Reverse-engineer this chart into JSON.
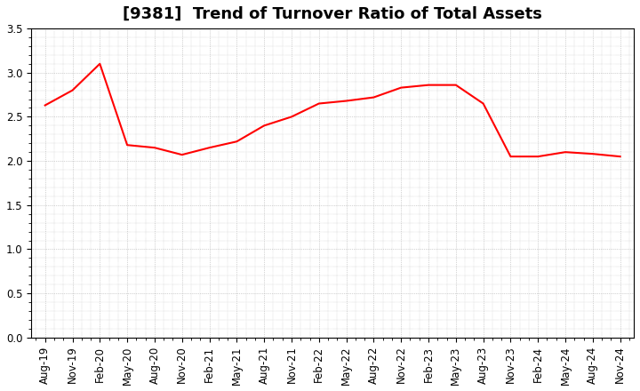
{
  "title": "[9381]  Trend of Turnover Ratio of Total Assets",
  "x_labels": [
    "Aug-19",
    "Nov-19",
    "Feb-20",
    "May-20",
    "Aug-20",
    "Nov-20",
    "Feb-21",
    "May-21",
    "Aug-21",
    "Nov-21",
    "Feb-22",
    "May-22",
    "Aug-22",
    "Nov-22",
    "Feb-23",
    "May-23",
    "Aug-23",
    "Nov-23",
    "Feb-24",
    "May-24",
    "Aug-24",
    "Nov-24"
  ],
  "y_values": [
    2.63,
    2.8,
    3.1,
    2.18,
    2.15,
    2.07,
    2.15,
    2.22,
    2.4,
    2.5,
    2.65,
    2.68,
    2.72,
    2.83,
    2.86,
    2.86,
    2.65,
    2.05,
    2.05,
    2.1,
    2.08,
    2.05
  ],
  "line_color": "#ff0000",
  "line_width": 1.5,
  "ylim": [
    0.0,
    3.5
  ],
  "yticks": [
    0.0,
    0.5,
    1.0,
    1.5,
    2.0,
    2.5,
    3.0,
    3.5
  ],
  "background_color": "#ffffff",
  "grid_color": "#aaaaaa",
  "title_fontsize": 13,
  "tick_fontsize": 8.5
}
